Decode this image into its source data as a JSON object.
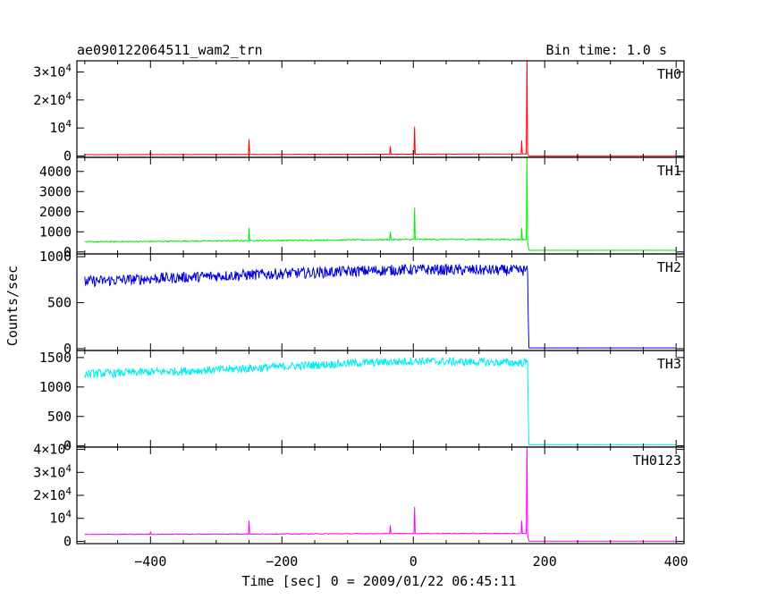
{
  "header": {
    "title": "ae090122064511_wam2_trn",
    "bin_time": "Bin time: 1.0 s"
  },
  "axes": {
    "xlabel": "Time [sec] 0 = 2009/01/22 06:45:11",
    "ylabel": "Counts/sec",
    "x_ticks": [
      "−400",
      "−200",
      "0",
      "200",
      "400"
    ]
  },
  "chart_data": {
    "type": "line",
    "xlim": [
      -512,
      412
    ],
    "x_tick_values": [
      -400,
      -200,
      0,
      200,
      400
    ],
    "drop_time": 175,
    "panels": [
      {
        "name": "TH0",
        "color": "#ff0000",
        "ylim": [
          -500,
          34000
        ],
        "yticks": [
          0,
          10000,
          20000,
          30000
        ],
        "ytick_labels": [
          "0",
          "10^4",
          "2×10^4",
          "3×10^4"
        ],
        "baseline": [
          [
            -500,
            450
          ],
          [
            -200,
            550
          ],
          [
            0,
            650
          ],
          [
            170,
            700
          ]
        ],
        "noise": 60,
        "after": 0,
        "spikes": [
          [
            -400,
            1500
          ],
          [
            -250,
            6000
          ],
          [
            -35,
            3500
          ],
          [
            2,
            10500
          ],
          [
            165,
            5500
          ],
          [
            173,
            35000
          ],
          [
            176,
            10000
          ]
        ]
      },
      {
        "name": "TH1",
        "color": "#00ee00",
        "ylim": [
          -100,
          4700
        ],
        "yticks": [
          0,
          1000,
          2000,
          3000,
          4000
        ],
        "ytick_labels": [
          "0",
          "1000",
          "2000",
          "3000",
          "4000"
        ],
        "baseline": [
          [
            -500,
            500
          ],
          [
            -200,
            570
          ],
          [
            0,
            620
          ],
          [
            170,
            620
          ]
        ],
        "noise": 30,
        "after": 80,
        "spikes": [
          [
            -250,
            1200
          ],
          [
            -35,
            1000
          ],
          [
            2,
            2200
          ],
          [
            165,
            1200
          ],
          [
            173,
            4700
          ],
          [
            176,
            1800
          ]
        ]
      },
      {
        "name": "TH2",
        "color": "#0000dd",
        "ylim": [
          -20,
          1030
        ],
        "yticks": [
          0,
          500,
          1000
        ],
        "ytick_labels": [
          "0",
          "500",
          "1000"
        ],
        "baseline": [
          [
            -500,
            730
          ],
          [
            -300,
            790
          ],
          [
            -100,
            840
          ],
          [
            0,
            860
          ],
          [
            170,
            850
          ]
        ],
        "noise": 60,
        "after": 8,
        "spikes": []
      },
      {
        "name": "TH3",
        "color": "#00eeee",
        "ylim": [
          -20,
          1620
        ],
        "yticks": [
          0,
          500,
          1000,
          1500
        ],
        "ytick_labels": [
          "0",
          "500",
          "1000",
          "1500"
        ],
        "baseline": [
          [
            -500,
            1220
          ],
          [
            -300,
            1290
          ],
          [
            -100,
            1400
          ],
          [
            0,
            1440
          ],
          [
            170,
            1410
          ]
        ],
        "noise": 70,
        "after": 20,
        "spikes": []
      },
      {
        "name": "TH0123",
        "color": "#ff00ff",
        "ylim": [
          -1000,
          41000
        ],
        "yticks": [
          0,
          10000,
          20000,
          30000,
          40000
        ],
        "ytick_labels": [
          "0",
          "10^4",
          "2×10^4",
          "3×10^4",
          "4×10^4"
        ],
        "baseline": [
          [
            -500,
            3000
          ],
          [
            -200,
            3200
          ],
          [
            0,
            3400
          ],
          [
            170,
            3400
          ]
        ],
        "noise": 150,
        "after": 80,
        "spikes": [
          [
            -400,
            4000
          ],
          [
            -250,
            9000
          ],
          [
            -35,
            7000
          ],
          [
            2,
            15000
          ],
          [
            165,
            9000
          ],
          [
            173,
            41000
          ],
          [
            176,
            12000
          ]
        ]
      }
    ]
  }
}
